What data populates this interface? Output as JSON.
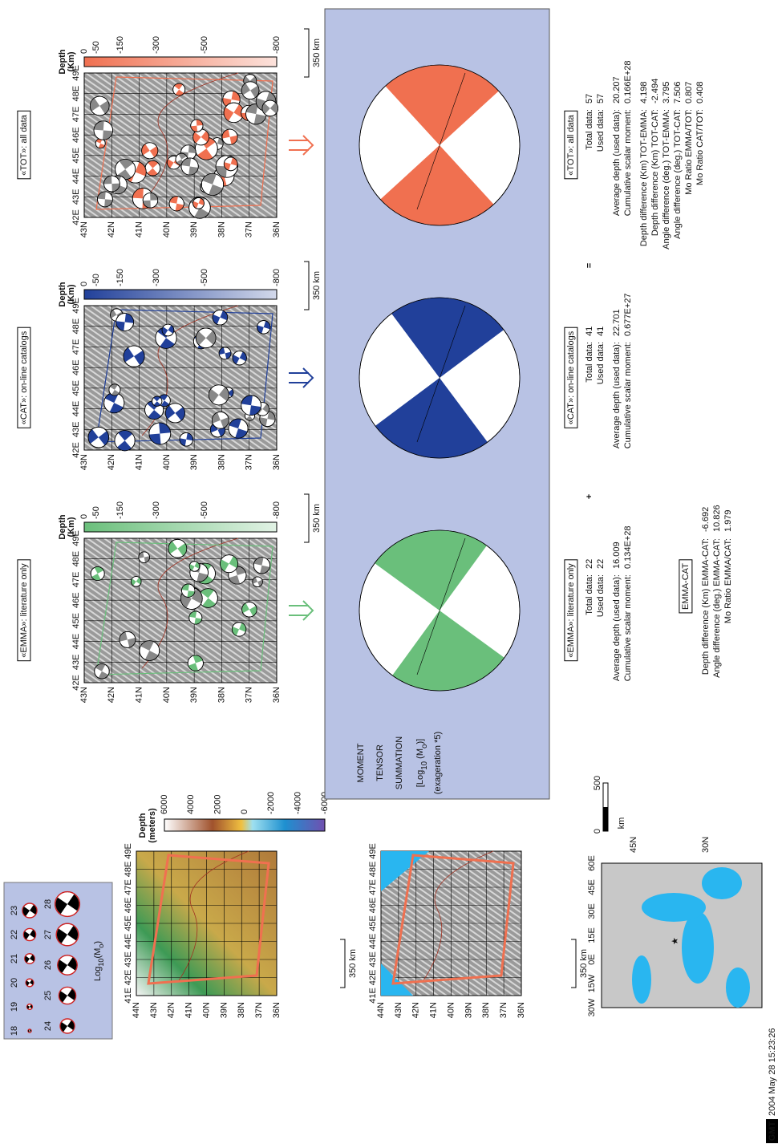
{
  "legend": {
    "magnitudes": [
      "18",
      "19",
      "20",
      "21",
      "22",
      "23",
      "24",
      "25",
      "26",
      "27",
      "28"
    ],
    "label": {
      "prefix": "Log",
      "base": "10",
      "middle": "(M",
      "sub": "o",
      "suffix": ")"
    }
  },
  "topo_maps": {
    "lat_labels": [
      "44N",
      "43N",
      "42N",
      "41N",
      "40N",
      "39N",
      "38N",
      "37N",
      "36N"
    ],
    "lon_labels": [
      "41E",
      "42E",
      "43E",
      "44E",
      "45E",
      "46E",
      "47E",
      "48E",
      "49E"
    ],
    "colorbar_title": [
      "Depth",
      "(meters)"
    ],
    "colorbar_labels": [
      "6000",
      "4000",
      "2000",
      "0",
      "-2000",
      "-4000",
      "-6000"
    ],
    "scale": "350 km"
  },
  "world_map": {
    "lon_labels": [
      "30W",
      "15W",
      "0E",
      "15E",
      "30E",
      "45E",
      "60E"
    ],
    "lat_labels": [
      "45N",
      "30N"
    ],
    "scale": "350 km",
    "km_scale": {
      "unit": "km",
      "ticks": [
        "0",
        "500"
      ]
    }
  },
  "panel_axes": {
    "lon_labels": [
      "42E",
      "43E",
      "44E",
      "45E",
      "46E",
      "47E",
      "48E",
      "49E"
    ],
    "lat_labels": [
      "43N",
      "42N",
      "41N",
      "40N",
      "39N",
      "38N",
      "37N",
      "36N"
    ],
    "depth_title": [
      "Depth",
      "(Km)"
    ],
    "depth_labels": [
      "0",
      "-50",
      "-150",
      "-300",
      "-500",
      "-800"
    ],
    "scale": "350 km"
  },
  "panels": [
    {
      "title": "«EMMA»: literature only",
      "color": "#6abf7b",
      "stats": [
        {
          "label": "Total data:",
          "value": "22"
        },
        {
          "label": "Used data:",
          "value": "22"
        },
        {
          "label": "Average depth (used data):",
          "value": "16.009"
        },
        {
          "label": "Cumulative scalar moment:",
          "value": "0.134E+28"
        }
      ]
    },
    {
      "title": "«CAT»: on-line catalogs",
      "color": "#21409a",
      "stats": [
        {
          "label": "Total data:",
          "value": "41"
        },
        {
          "label": "Used data:",
          "value": "41"
        },
        {
          "label": "Average depth (used data):",
          "value": "22.701"
        },
        {
          "label": "Cumulative scalar moment:",
          "value": "0.677E+27"
        }
      ]
    },
    {
      "title": "«TOT»: all data",
      "color": "#f07050",
      "stats": [
        {
          "label": "Total data:",
          "value": "57"
        },
        {
          "label": "Used data:",
          "value": "57"
        },
        {
          "label": "Average depth (used data):",
          "value": "20.207"
        },
        {
          "label": "Cumulative scalar moment:",
          "value": "0.166E+28"
        },
        {
          "label": "Depth difference (Km) TOT-EMMA:",
          "value": "4.198"
        },
        {
          "label": "Depth difference (Km) TOT-CAT:",
          "value": "-2.494"
        },
        {
          "label": "Angle difference (deg.) TOT-EMMA:",
          "value": "3.795"
        },
        {
          "label": "Angle difference (deg.) TOT-CAT:",
          "value": "7.506"
        },
        {
          "label": "Mo Ratio EMMA/TOT:",
          "value": "0.807"
        },
        {
          "label": "Mo Ratio CAT/TOT:",
          "value": "0.408"
        }
      ]
    }
  ],
  "summation": {
    "lines": [
      "MOMENT",
      "TENSOR",
      "SUMMATION"
    ],
    "formula": {
      "prefix": "[Log",
      "base": "10",
      "middle": " (M",
      "sub": "o",
      "suffix": ")]"
    },
    "note": "(exageration *5)"
  },
  "operators": [
    "+",
    "="
  ],
  "emma_cat": {
    "title": "EMMA-CAT",
    "rows": [
      {
        "label": "Depth difference (Km) EMMA-CAT:",
        "value": "-6.692"
      },
      {
        "label": "Angle difference (deg.) EMMA-CAT:",
        "value": "10.826"
      },
      {
        "label": "Mo Ratio EMMA/CAT:",
        "value": "1.979"
      }
    ]
  },
  "footer": {
    "logo": "GMT",
    "timestamp": "2004 May 28 15:23:26"
  }
}
